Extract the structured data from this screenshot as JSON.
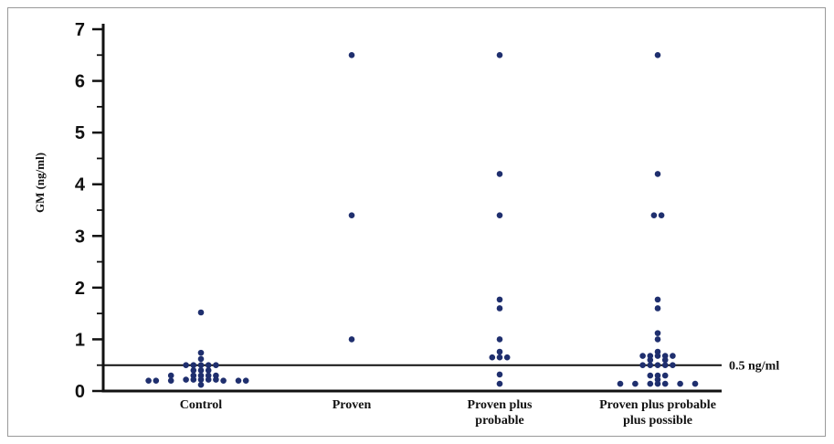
{
  "chart_data": {
    "type": "scatter",
    "title": "",
    "xlabel": "",
    "ylabel": "GM (ng/ml)",
    "ylim": [
      0,
      7
    ],
    "yticks": [
      "0",
      "1",
      "2",
      "3",
      "4",
      "5",
      "6",
      "7"
    ],
    "grid": false,
    "legend": "none",
    "point_color": "#1f2f6e",
    "categories": [
      [
        "Control"
      ],
      [
        "Proven"
      ],
      [
        "Proven plus",
        "probable"
      ],
      [
        "Proven plus probable",
        "plus possible"
      ]
    ],
    "reference_line": {
      "value": 0.5,
      "label": "0.5 ng/ml"
    },
    "groups": [
      {
        "points": [
          {
            "y": 1.52,
            "dx": 0
          },
          {
            "y": 0.74,
            "dx": 0
          },
          {
            "y": 0.62,
            "dx": 0
          },
          {
            "y": 0.5,
            "dx": -2
          },
          {
            "y": 0.5,
            "dx": -1
          },
          {
            "y": 0.5,
            "dx": 0
          },
          {
            "y": 0.5,
            "dx": 1
          },
          {
            "y": 0.5,
            "dx": 2
          },
          {
            "y": 0.4,
            "dx": -1
          },
          {
            "y": 0.4,
            "dx": 0
          },
          {
            "y": 0.4,
            "dx": 1
          },
          {
            "y": 0.3,
            "dx": -4
          },
          {
            "y": 0.3,
            "dx": -1
          },
          {
            "y": 0.3,
            "dx": 0
          },
          {
            "y": 0.3,
            "dx": 1
          },
          {
            "y": 0.3,
            "dx": 2
          },
          {
            "y": 0.22,
            "dx": -2
          },
          {
            "y": 0.22,
            "dx": -1
          },
          {
            "y": 0.22,
            "dx": 0
          },
          {
            "y": 0.22,
            "dx": 1
          },
          {
            "y": 0.22,
            "dx": 2
          },
          {
            "y": 0.2,
            "dx": -7
          },
          {
            "y": 0.2,
            "dx": -6
          },
          {
            "y": 0.2,
            "dx": -4
          },
          {
            "y": 0.2,
            "dx": 3
          },
          {
            "y": 0.2,
            "dx": 5
          },
          {
            "y": 0.2,
            "dx": 6
          },
          {
            "y": 0.12,
            "dx": 0
          }
        ]
      },
      {
        "points": [
          {
            "y": 6.5,
            "dx": 0
          },
          {
            "y": 3.4,
            "dx": 0
          },
          {
            "y": 1.0,
            "dx": 0
          }
        ]
      },
      {
        "points": [
          {
            "y": 6.5,
            "dx": 0
          },
          {
            "y": 4.2,
            "dx": 0
          },
          {
            "y": 3.4,
            "dx": 0
          },
          {
            "y": 1.77,
            "dx": 0
          },
          {
            "y": 1.6,
            "dx": 0
          },
          {
            "y": 1.0,
            "dx": 0
          },
          {
            "y": 0.76,
            "dx": 0
          },
          {
            "y": 0.65,
            "dx": -1
          },
          {
            "y": 0.65,
            "dx": 0
          },
          {
            "y": 0.65,
            "dx": 1
          },
          {
            "y": 0.32,
            "dx": 0
          },
          {
            "y": 0.14,
            "dx": 0
          }
        ]
      },
      {
        "points": [
          {
            "y": 6.5,
            "dx": 0
          },
          {
            "y": 4.2,
            "dx": 0
          },
          {
            "y": 3.4,
            "dx": -0.5
          },
          {
            "y": 3.4,
            "dx": 0.5
          },
          {
            "y": 1.77,
            "dx": 0
          },
          {
            "y": 1.6,
            "dx": 0
          },
          {
            "y": 1.12,
            "dx": 0
          },
          {
            "y": 1.0,
            "dx": 0
          },
          {
            "y": 0.76,
            "dx": 0
          },
          {
            "y": 0.68,
            "dx": -2
          },
          {
            "y": 0.68,
            "dx": -1
          },
          {
            "y": 0.68,
            "dx": 0
          },
          {
            "y": 0.68,
            "dx": 1
          },
          {
            "y": 0.68,
            "dx": 2
          },
          {
            "y": 0.6,
            "dx": -1
          },
          {
            "y": 0.6,
            "dx": 1
          },
          {
            "y": 0.5,
            "dx": -2
          },
          {
            "y": 0.5,
            "dx": -1
          },
          {
            "y": 0.5,
            "dx": 0
          },
          {
            "y": 0.5,
            "dx": 1
          },
          {
            "y": 0.5,
            "dx": 2
          },
          {
            "y": 0.3,
            "dx": -1
          },
          {
            "y": 0.3,
            "dx": 0
          },
          {
            "y": 0.3,
            "dx": 1
          },
          {
            "y": 0.22,
            "dx": 0
          },
          {
            "y": 0.14,
            "dx": -5
          },
          {
            "y": 0.14,
            "dx": -3
          },
          {
            "y": 0.14,
            "dx": -1
          },
          {
            "y": 0.14,
            "dx": 0
          },
          {
            "y": 0.14,
            "dx": 1
          },
          {
            "y": 0.14,
            "dx": 3
          },
          {
            "y": 0.14,
            "dx": 5
          }
        ]
      }
    ]
  }
}
